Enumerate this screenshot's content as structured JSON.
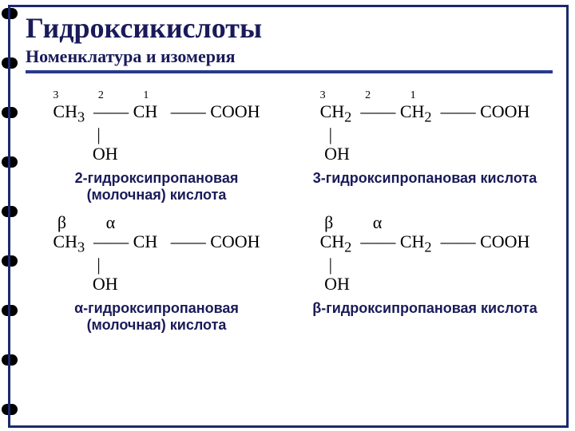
{
  "title": "Гидроксикислоты",
  "subtitle": "Номенклатура и изомерия",
  "spiral": {
    "count": 9,
    "spacing": 62,
    "start": 10
  },
  "colors": {
    "border": "#1a2a6c",
    "text": "#1a1a5a",
    "line": "#2a3a8c"
  },
  "cells": [
    {
      "caption": "2-гидроксипропановая\n(молочная) кислота",
      "formula": {
        "labels": [
          "3",
          "2",
          "1"
        ],
        "chain": [
          "CH₃",
          "CH",
          "COOH"
        ],
        "below_idx": 1,
        "below": "OH",
        "greek": null
      }
    },
    {
      "caption": "3-гидроксипропановая кислота",
      "formula": {
        "labels": [
          "3",
          "2",
          "1"
        ],
        "chain": [
          "CH₂",
          "CH₂",
          "COOH"
        ],
        "below_idx": 0,
        "below": "OH",
        "greek": null
      }
    },
    {
      "caption": "α-гидроксипропановая\n(молочная) кислота",
      "formula": {
        "labels": null,
        "chain": [
          "CH₃",
          "CH",
          "COOH"
        ],
        "below_idx": 1,
        "below": "OH",
        "greek": [
          "β",
          "α",
          ""
        ]
      }
    },
    {
      "caption": "β-гидроксипропановая кислота",
      "formula": {
        "labels": null,
        "chain": [
          "CH₂",
          "CH₂",
          "COOH"
        ],
        "below_idx": 0,
        "below": "OH",
        "greek": [
          "β",
          "α",
          ""
        ]
      }
    }
  ]
}
